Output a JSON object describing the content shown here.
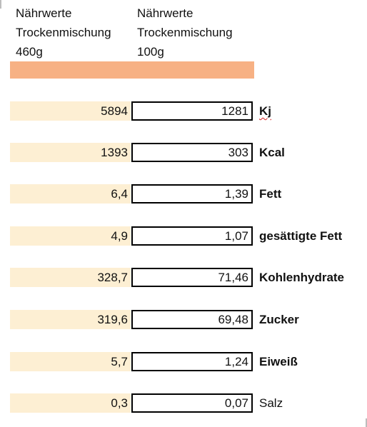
{
  "colors": {
    "orange": "#f7b184",
    "cream": "#fdefd3"
  },
  "headers": [
    [
      "Nährwerte",
      "Trockenmischung",
      "460g"
    ],
    [
      "Nährwerte",
      "Trockenmischung",
      "100g"
    ]
  ],
  "rows": [
    {
      "v460": "5894",
      "v100": "1281",
      "label": "Kj",
      "style": "squiggle"
    },
    {
      "v460": "1393",
      "v100": "303",
      "label": "Kcal",
      "style": ""
    },
    {
      "v460": "6,4",
      "v100": "1,39",
      "label": "Fett",
      "style": ""
    },
    {
      "v460": "4,9",
      "v100": "1,07",
      "label": "gesättigte Fett",
      "style": ""
    },
    {
      "v460": "328,7",
      "v100": "71,46",
      "label": "Kohlenhydrate",
      "style": ""
    },
    {
      "v460": "319,6",
      "v100": "69,48",
      "label": "Zucker",
      "style": ""
    },
    {
      "v460": "5,7",
      "v100": "1,24",
      "label": "Eiweiß",
      "style": ""
    },
    {
      "v460": "0,3",
      "v100": "0,07",
      "label": "Salz",
      "style": "normal"
    }
  ]
}
